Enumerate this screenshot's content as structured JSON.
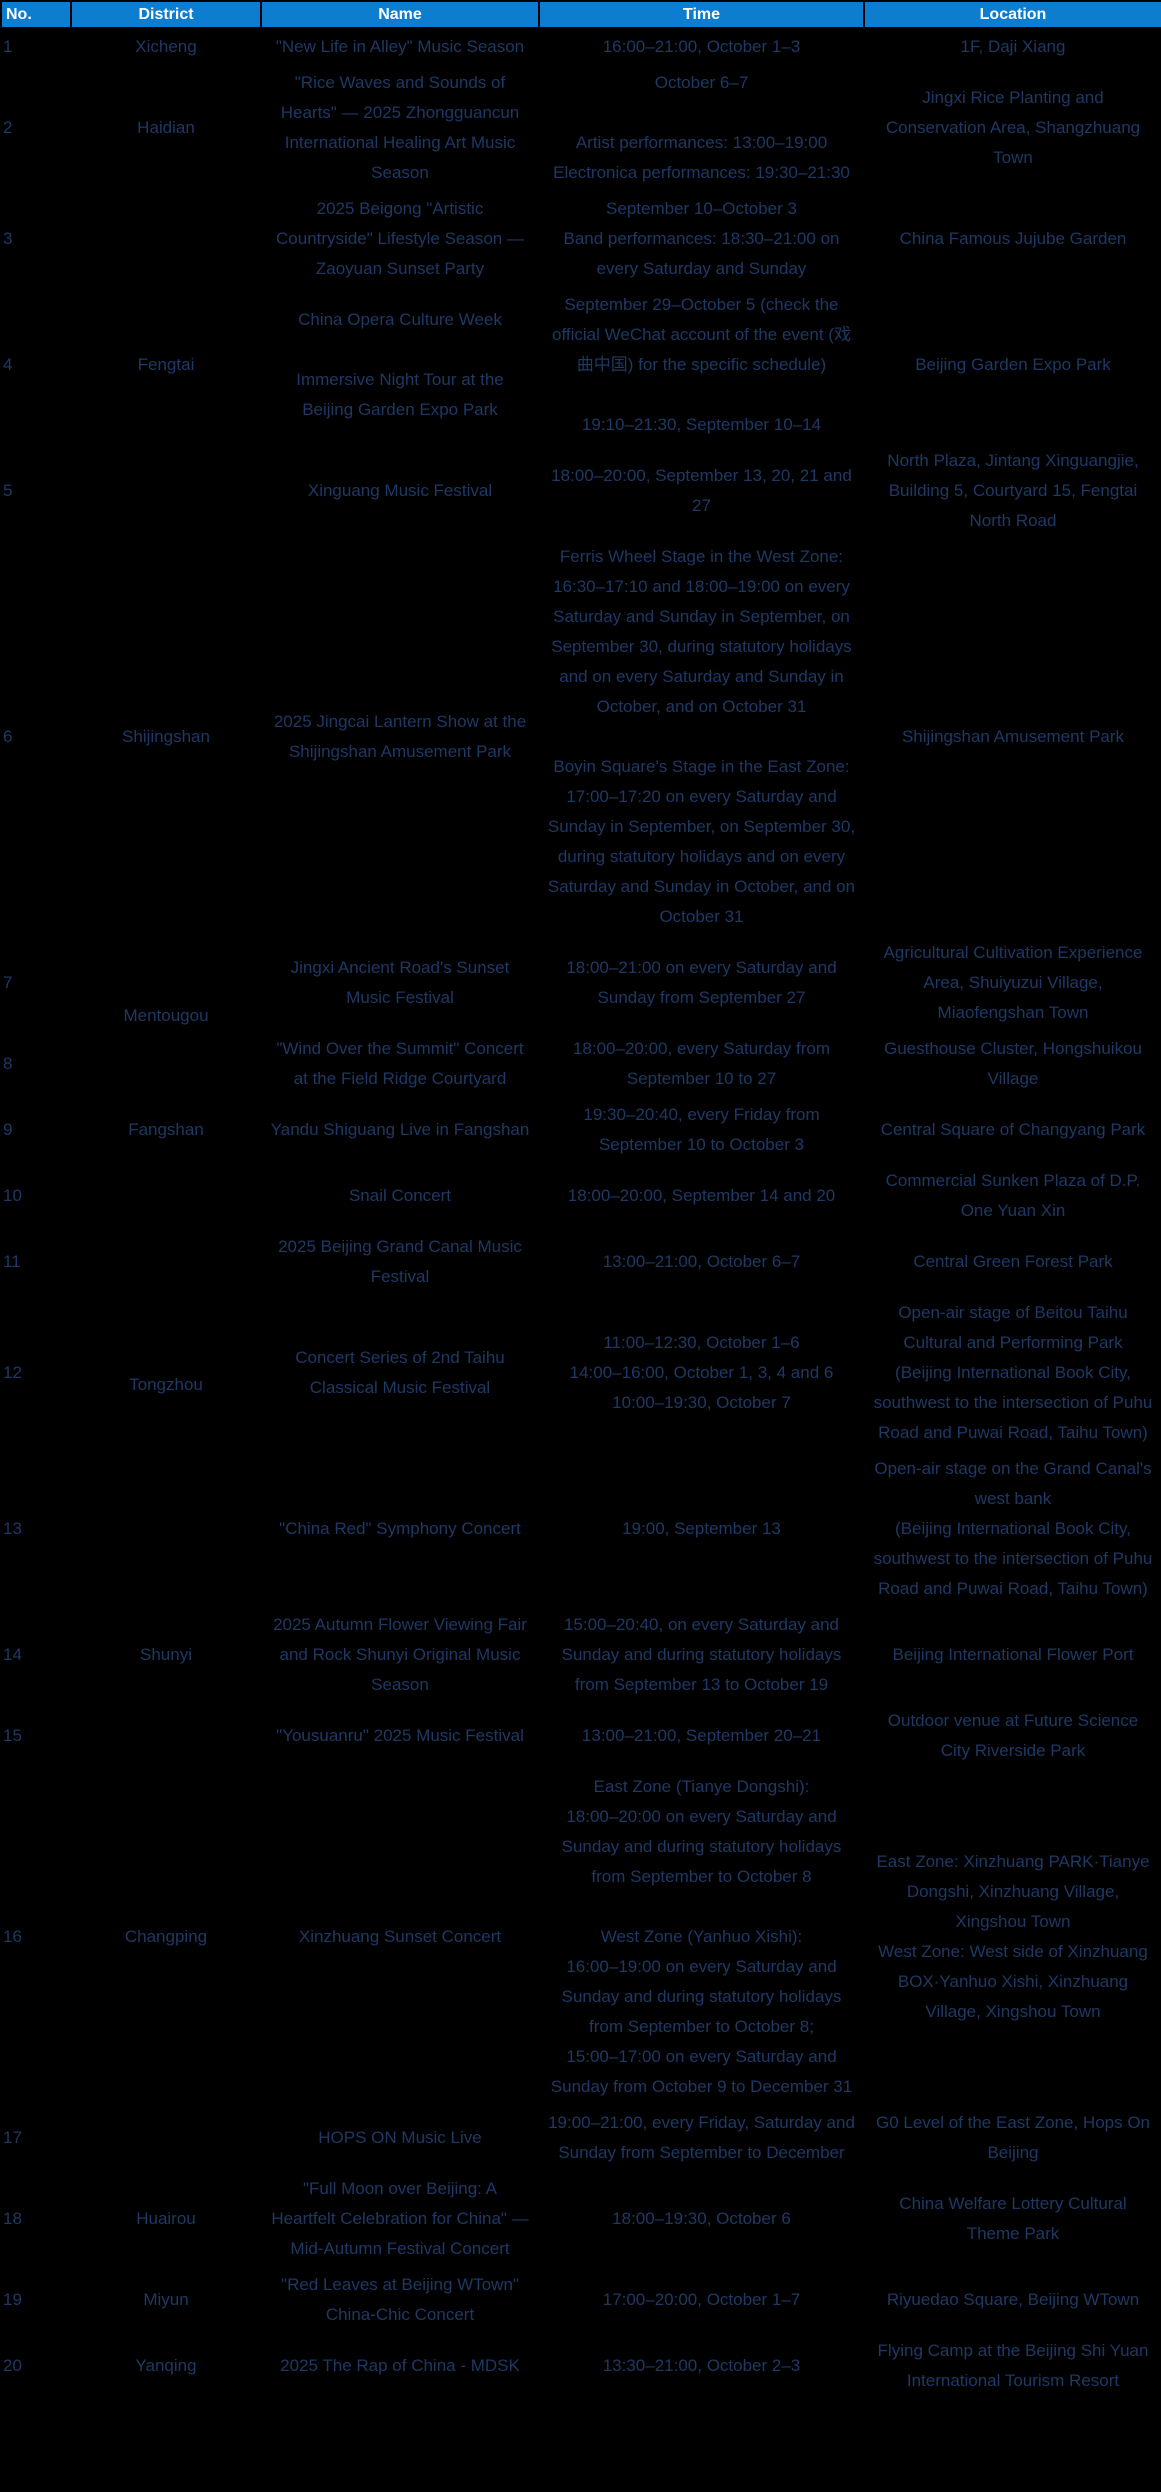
{
  "colors": {
    "header_bg": "#0d7ecf",
    "header_text": "#ffffff",
    "body_text": "#1f3864",
    "page_bg": "#000000"
  },
  "table": {
    "columns": [
      {
        "key": "no",
        "label": "No."
      },
      {
        "key": "district",
        "label": "District"
      },
      {
        "key": "name",
        "label": "Name"
      },
      {
        "key": "time",
        "label": "Time"
      },
      {
        "key": "location",
        "label": "Location"
      }
    ],
    "rows": [
      {
        "no": "1",
        "district": "Xicheng",
        "district_rowspan": 1,
        "name": [
          "\"New Life in Alley\" Music Season"
        ],
        "time": [
          "16:00–21:00, October 1–3"
        ],
        "location": [
          "1F, Daji Xiang"
        ]
      },
      {
        "no": "2",
        "district": "Haidian",
        "district_rowspan": 1,
        "name": [
          "\"Rice Waves and Sounds of Hearts\" — 2025 Zhongguancun International Healing Art Music Season"
        ],
        "time": [
          "October 6–7",
          "Artist performances: 13:00–19:00\nElectronica performances: 19:30–21:30"
        ],
        "location": [
          "Jingxi Rice Planting and Conservation Area, Shangzhuang Town"
        ]
      },
      {
        "no": "3",
        "district": "Fengtai",
        "district_rowspan": 3,
        "name": [
          "2025 Beigong \"Artistic Countryside\" Lifestyle Season — Zaoyuan Sunset Party"
        ],
        "time": [
          "September 10–October 3\nBand performances: 18:30–21:00 on every Saturday and Sunday"
        ],
        "location": [
          "China Famous Jujube Garden"
        ]
      },
      {
        "no": "4",
        "name": [
          "China Opera Culture Week",
          "Immersive Night Tour at the Beijing Garden Expo Park"
        ],
        "time": [
          "September 29–October 5 (check the official WeChat account of the event (戏曲中国) for the specific schedule)",
          "19:10–21:30, September 10–14"
        ],
        "location": [
          "Beijing Garden Expo Park"
        ]
      },
      {
        "no": "5",
        "name": [
          "Xinguang Music Festival"
        ],
        "time": [
          "18:00–20:00, September 13, 20, 21 and 27"
        ],
        "location": [
          "North Plaza, Jintang Xinguangjie, Building 5, Courtyard 15, Fengtai North Road"
        ]
      },
      {
        "no": "6",
        "district": "Shijingshan",
        "district_rowspan": 1,
        "name": [
          "2025 Jingcai Lantern Show at the Shijingshan Amusement Park"
        ],
        "time": [
          "Ferris Wheel Stage in the West Zone:\n16:30–17:10 and 18:00–19:00 on every Saturday and Sunday in September, on September 30, during statutory holidays and on every Saturday and Sunday in October, and on October 31",
          "Boyin Square's Stage in the East Zone:\n17:00–17:20 on every Saturday and Sunday in September, on September 30, during statutory holidays and on every Saturday and Sunday in October, and on October 31"
        ],
        "location": [
          "Shijingshan Amusement Park"
        ]
      },
      {
        "no": "7",
        "district": "Mentougou",
        "district_rowspan": 2,
        "name": [
          "Jingxi Ancient Road's Sunset Music Festival"
        ],
        "time": [
          "18:00–21:00 on every Saturday and Sunday from September 27"
        ],
        "location": [
          "Agricultural Cultivation Experience Area, Shuiyuzui Village, Miaofengshan Town"
        ]
      },
      {
        "no": "8",
        "name": [
          "\"Wind Over the Summit\" Concert at the Field Ridge Courtyard"
        ],
        "time": [
          "18:00–20:00, every Saturday from September 10 to 27"
        ],
        "location": [
          "Guesthouse Cluster, Hongshuikou Village"
        ]
      },
      {
        "no": "9",
        "district": "Fangshan",
        "district_rowspan": 1,
        "name": [
          "Yandu Shiguang Live in Fangshan"
        ],
        "time": [
          "19:30–20:40, every Friday from September 10 to October 3"
        ],
        "location": [
          "Central Square of Changyang Park"
        ]
      },
      {
        "no": "10",
        "district": "Tongzhou",
        "district_rowspan": 4,
        "name": [
          "Snail Concert"
        ],
        "time": [
          "18:00–20:00, September 14 and 20"
        ],
        "location": [
          "Commercial Sunken Plaza of D.P. One Yuan Xin"
        ]
      },
      {
        "no": "11",
        "name": [
          "2025 Beijing Grand Canal Music Festival"
        ],
        "time": [
          "13:00–21:00, October 6–7"
        ],
        "location": [
          "Central Green Forest Park"
        ]
      },
      {
        "no": "12",
        "name": [
          "Concert Series of 2nd Taihu Classical Music Festival"
        ],
        "time": [
          "11:00–12:30, October 1–6\n14:00–16:00, October 1, 3, 4 and 6\n10:00–19:30, October 7"
        ],
        "location": [
          "Open-air stage of Beitou Taihu Cultural and Performing Park\n(Beijing International Book City, southwest to the intersection of Puhu Road and Puwai Road, Taihu Town)"
        ]
      },
      {
        "no": "13",
        "name": [
          "\"China Red\" Symphony Concert"
        ],
        "time": [
          "19:00, September 13"
        ],
        "location": [
          "Open-air stage on the Grand Canal's west bank\n(Beijing International Book City, southwest to the intersection of Puhu Road and Puwai Road, Taihu Town)"
        ]
      },
      {
        "no": "14",
        "district": "Shunyi",
        "district_rowspan": 1,
        "name": [
          "2025 Autumn Flower Viewing Fair and Rock Shunyi Original Music Season"
        ],
        "time": [
          "15:00–20:40, on every Saturday and Sunday and during statutory holidays from September 13 to October 19"
        ],
        "location": [
          "Beijing International Flower Port"
        ]
      },
      {
        "no": "15",
        "district": "Changping",
        "district_rowspan": 3,
        "name": [
          "\"Yousuanru\" 2025 Music Festival"
        ],
        "time": [
          "13:00–21:00, September 20–21"
        ],
        "location": [
          "Outdoor venue at Future Science City Riverside Park"
        ]
      },
      {
        "no": "16",
        "name": [
          "Xinzhuang Sunset Concert"
        ],
        "time": [
          "East Zone (Tianye Dongshi):\n18:00–20:00 on every Saturday and Sunday and during statutory holidays from September to October 8",
          "West Zone (Yanhuo Xishi):\n16:00–19:00 on every Saturday and Sunday and during statutory holidays from September to October 8;\n15:00–17:00 on every Saturday and Sunday from October 9 to December 31"
        ],
        "location": [
          "East Zone: Xinzhuang PARK·Tianye Dongshi, Xinzhuang Village, Xingshou Town\nWest Zone: West side of Xinzhuang BOX·Yanhuo Xishi, Xinzhuang Village, Xingshou Town"
        ]
      },
      {
        "no": "17",
        "name": [
          "HOPS ON Music Live"
        ],
        "time": [
          "19:00–21:00, every Friday, Saturday and Sunday from September to December"
        ],
        "location": [
          "G0 Level of the East Zone, Hops On Beijing"
        ]
      },
      {
        "no": "18",
        "district": "Huairou",
        "district_rowspan": 1,
        "name": [
          "\"Full Moon over Beijing: A Heartfelt Celebration for China\" — Mid-Autumn Festival Concert"
        ],
        "time": [
          "18:00–19:30, October 6"
        ],
        "location": [
          "China Welfare Lottery Cultural Theme Park"
        ]
      },
      {
        "no": "19",
        "district": "Miyun",
        "district_rowspan": 1,
        "name": [
          "\"Red Leaves at Beijing WTown\" China-Chic Concert"
        ],
        "time": [
          "17:00–20:00, October 1–7"
        ],
        "location": [
          "Riyuedao Square, Beijing WTown"
        ]
      },
      {
        "no": "20",
        "district": "Yanqing",
        "district_rowspan": 1,
        "name": [
          "2025 The Rap of China - MDSK"
        ],
        "time": [
          "13:30–21:00, October 2–3"
        ],
        "location": [
          "Flying Camp at the Beijing Shi Yuan International Tourism Resort"
        ]
      }
    ]
  }
}
